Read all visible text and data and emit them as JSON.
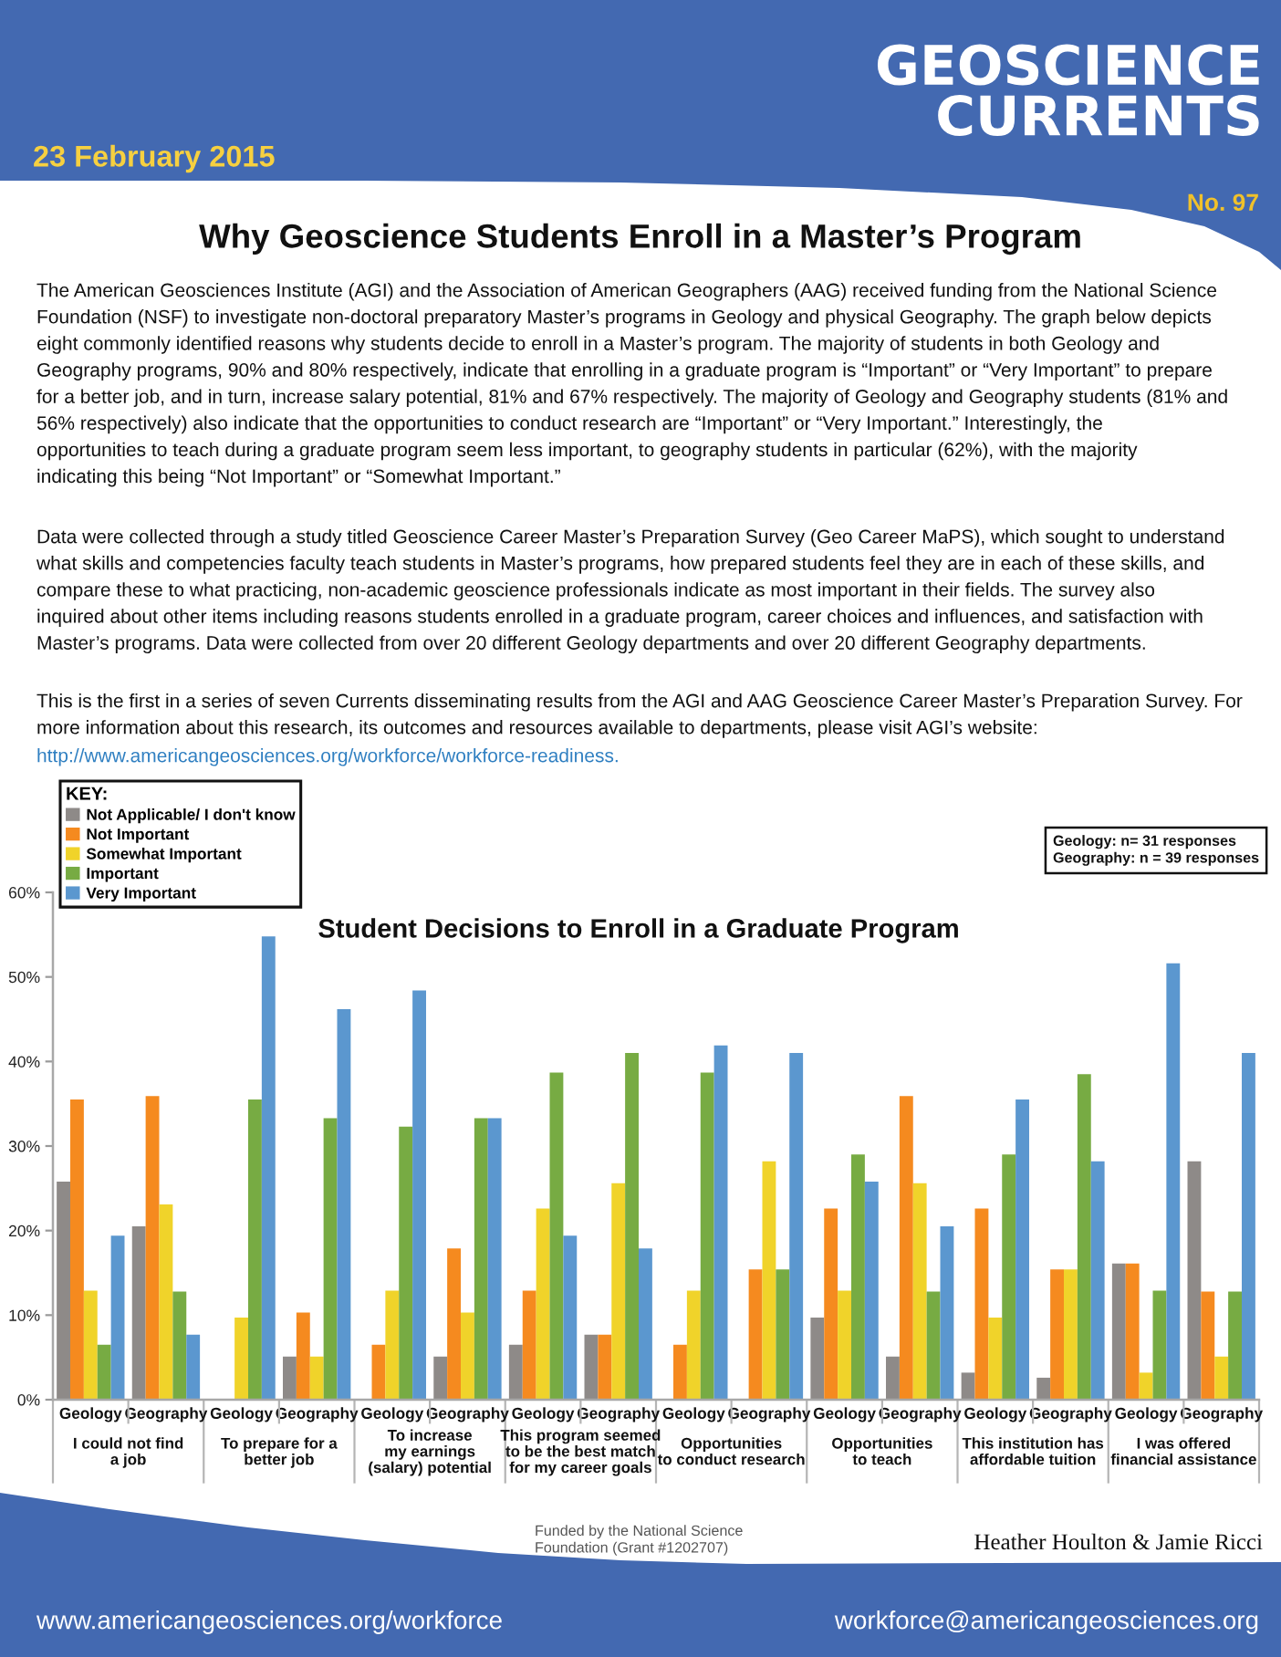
{
  "chart_data": {
    "type": "bar",
    "title": "Student Decisions to Enroll in a Graduate Program",
    "legend_title": "KEY:",
    "legend": "top left",
    "categories": [
      "Geology",
      "Geography",
      "Geology",
      "Geography",
      "Geology",
      "Geography",
      "Geology",
      "Geography",
      "Geology",
      "Geography",
      "Geology",
      "Geography",
      "Geology",
      "Geography",
      "Geology",
      "Geography"
    ],
    "series": [
      {
        "name": "Not Applicable/ I don't know",
        "color": "#8e8a88",
        "values": [
          25.8,
          20.5,
          0,
          5.1,
          0,
          5.1,
          6.5,
          7.7,
          0,
          0,
          9.7,
          5.1,
          3.2,
          2.6,
          16.1,
          28.2
        ]
      },
      {
        "name": "Not Important",
        "color": "#f58a1f",
        "values": [
          35.5,
          35.9,
          0,
          10.3,
          6.5,
          17.9,
          12.9,
          7.7,
          6.5,
          15.4,
          22.6,
          35.9,
          22.6,
          15.4,
          16.1,
          12.8
        ]
      },
      {
        "name": "Somewhat Important",
        "color": "#f0d32a",
        "values": [
          12.9,
          23.1,
          9.7,
          5.1,
          12.9,
          10.3,
          22.6,
          25.6,
          12.9,
          28.2,
          12.9,
          25.6,
          9.7,
          15.4,
          3.2,
          5.1
        ]
      },
      {
        "name": "Important",
        "color": "#77ab43",
        "values": [
          6.5,
          12.8,
          35.5,
          33.3,
          32.3,
          33.3,
          38.7,
          41.0,
          38.7,
          15.4,
          29.0,
          12.8,
          29.0,
          38.5,
          12.9,
          12.8
        ]
      },
      {
        "name": "Very Important",
        "color": "#5b97cf",
        "values": [
          19.4,
          7.7,
          54.8,
          46.2,
          48.4,
          33.3,
          19.4,
          17.9,
          41.9,
          41.0,
          25.8,
          20.5,
          35.5,
          28.2,
          51.6,
          41.0
        ]
      }
    ],
    "ylim": [
      0,
      60
    ],
    "yticks": [
      {
        "value": 0,
        "label": "0%"
      },
      {
        "value": 10,
        "label": "10%"
      },
      {
        "value": 20,
        "label": "20%"
      },
      {
        "value": 30,
        "label": "30%"
      },
      {
        "value": 40,
        "label": "40%"
      },
      {
        "value": 50,
        "label": "50%"
      },
      {
        "value": 60,
        "label": "60%"
      }
    ],
    "annotations": [
      "I could not find\na job",
      "To prepare for a\nbetter job",
      "To increase\nmy earnings\n(salary) potential",
      "This program seemed\nto be the best match\nfor my career goals",
      "Opportunities\nto conduct research",
      "Opportunities\nto teach",
      "This institution has\naffordable tuition",
      "I was offered\nfinancial assistance",
      "GEOSCIENCE\nCURRENTS",
      "23 February 2015",
      "No. 97",
      "Why Geoscience Students Enroll in a Master’s Program",
      "The American Geosciences Institute (AGI) and the Association of American Geographers (AAG) received funding from the National Science\nFoundation (NSF) to investigate non-doctoral preparatory Master’s programs in Geology and physical Geography. The graph below depicts\neight commonly identified reasons why students decide to enroll in a Master’s program. The majority of students in both Geology and\nGeography programs, 90% and 80% respectively, indicate that enrolling in a graduate program is “Important” or “Very Important” to prepare\nfor a better job, and in turn, increase salary potential, 81% and 67% respectively. The majority of Geology and Geography students (81% and\n56% respectively) also indicate that the opportunities to conduct research are “Important” or “Very Important.” Interestingly, the\nopportunities to teach during a graduate program seem less important, to geography students in particular (62%), with the majority\nindicating this being “Not Important” or “Somewhat Important.”",
      "Data were collected through a study titled Geoscience Career Master’s Preparation Survey (Geo Career MaPS), which sought to understand\nwhat skills and competencies faculty teach students in Master’s programs, how prepared students feel they are in each of these skills, and\ncompare these to what practicing, non-academic geoscience professionals indicate as most important in their fields. The survey also\ninquired about other items including reasons students enrolled in a graduate program, career choices and influences, and satisfaction with\nMaster’s programs. Data were collected from over 20 different Geology departments and over 20 different Geography departments.",
      "This is the first in a series of seven Currents disseminating results from the AGI and AAG Geoscience Career Master’s Preparation Survey. For\nmore information about this research, its outcomes and resources available to departments, please visit AGI’s website:",
      "http://www.americangeosciences.org/workforce/workforce-readiness.",
      "Geology: n= 31 responses\nGeography: n = 39 responses",
      "Funded by the National Science\nFoundation (Grant #1202707)",
      "Heather Houlton & Jamie Ricci",
      "www.americangeosciences.org/workforce",
      "workforce@americangeosciences.org"
    ]
  }
}
